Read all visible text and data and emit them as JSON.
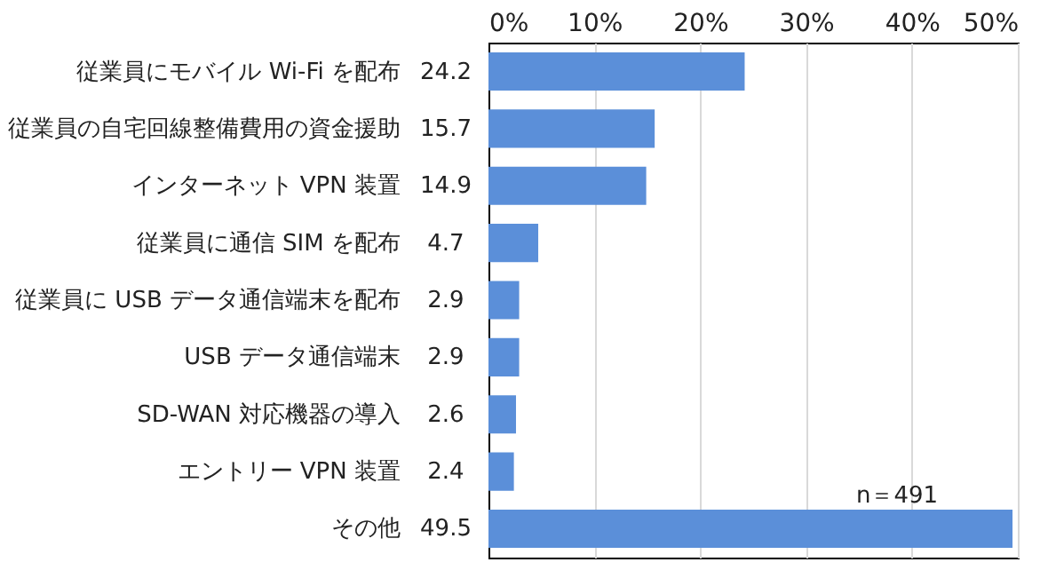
{
  "chart_data": {
    "type": "bar",
    "orientation": "horizontal",
    "categories": [
      "従業員にモバイル Wi-Fi を配布",
      "従業員の自宅回線整備費用の資金援助",
      "インターネット VPN 装置",
      "従業員に通信 SIM を配布",
      "従業員に USB データ通信端末を配布",
      "USB データ通信端末",
      "SD-WAN 対応機器の導入",
      "エントリー VPN 装置",
      "その他"
    ],
    "values": [
      24.2,
      15.7,
      14.9,
      4.7,
      2.9,
      2.9,
      2.6,
      2.4,
      49.5
    ],
    "color": "#5b8fd9",
    "xlim": [
      0,
      50
    ],
    "xticks": [
      {
        "value": 0,
        "label": "0%"
      },
      {
        "value": 10,
        "label": "10%"
      },
      {
        "value": 20,
        "label": "20%"
      },
      {
        "value": 30,
        "label": "30%"
      },
      {
        "value": 40,
        "label": "40%"
      },
      {
        "value": 50,
        "label": "50%"
      }
    ],
    "grid": "x",
    "data_labels": true,
    "annotations": [
      "n＝491"
    ]
  }
}
